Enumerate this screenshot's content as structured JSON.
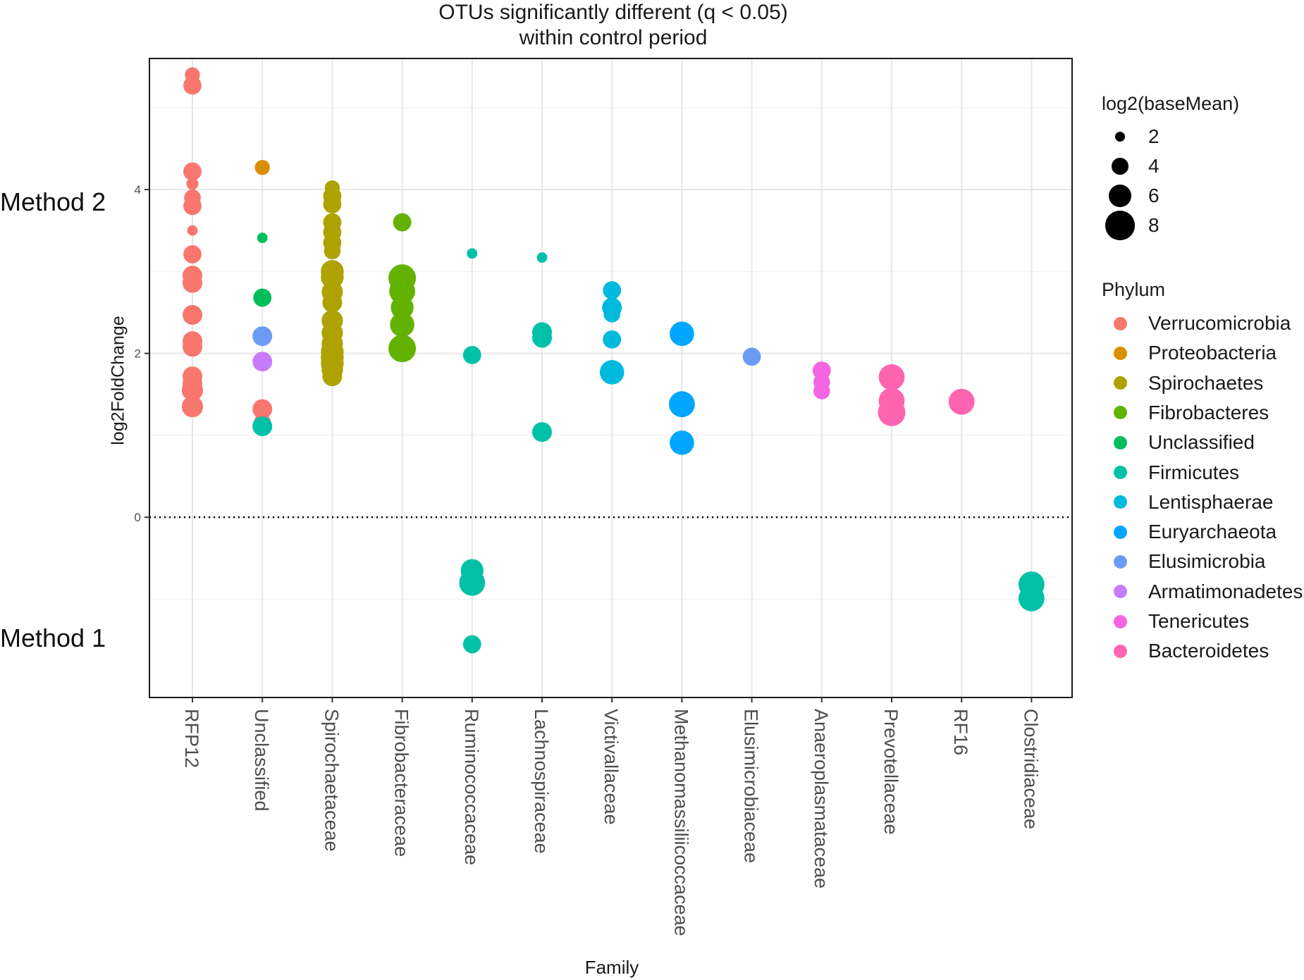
{
  "chart_data": {
    "type": "scatter",
    "title": "OTUs significantly different (q < 0.05)",
    "subtitle": "within control period",
    "xlabel": "Family",
    "ylabel": "log2FoldChange",
    "annotations": {
      "upper": "Method 2",
      "lower": "Method 1"
    },
    "ylim": [
      -2.2,
      5.6
    ],
    "yticks": [
      0,
      2,
      4
    ],
    "reference_line": {
      "y": 0,
      "style": "dotted"
    },
    "grid": true,
    "categories": [
      "RFP12",
      "Unclassified",
      "Spirochaetaceae",
      "Fibrobacteraceae",
      "Ruminococcaceae",
      "Lachnospiraceae",
      "Victivallaceae",
      "Methanomassiliicoccaceae",
      "Elusimicrobiaceae",
      "Anaeroplasmataceae",
      "Prevotellaceae",
      "RF16",
      "Clostridiaceae"
    ],
    "size_legend": {
      "title": "log2(baseMean)",
      "values": [
        2,
        4,
        6,
        8
      ]
    },
    "color_legend": {
      "title": "Phylum",
      "entries": [
        {
          "name": "Verrucomicrobia",
          "color": "#F8766D"
        },
        {
          "name": "Proteobacteria",
          "color": "#DB8E00"
        },
        {
          "name": "Spirochaetes",
          "color": "#AEA200"
        },
        {
          "name": "Fibrobacteres",
          "color": "#64B200"
        },
        {
          "name": "Unclassified",
          "color": "#00BD5C"
        },
        {
          "name": "Firmicutes",
          "color": "#00C1A7"
        },
        {
          "name": "Lentisphaerae",
          "color": "#00BADE"
        },
        {
          "name": "Euryarchaeota",
          "color": "#00A6FF"
        },
        {
          "name": "Elusimicrobia",
          "color": "#6B9CF5"
        },
        {
          "name": "Armatimonadetes",
          "color": "#C77CFF"
        },
        {
          "name": "Tenericutes",
          "color": "#F564E3"
        },
        {
          "name": "Bacteroidetes",
          "color": "#FF64B0"
        }
      ]
    },
    "points": [
      {
        "family": "RFP12",
        "phylum": "Verrucomicrobia",
        "y": 5.4,
        "size": 3.5
      },
      {
        "family": "RFP12",
        "phylum": "Verrucomicrobia",
        "y": 5.27,
        "size": 4.5
      },
      {
        "family": "RFP12",
        "phylum": "Verrucomicrobia",
        "y": 4.22,
        "size": 4.5
      },
      {
        "family": "RFP12",
        "phylum": "Verrucomicrobia",
        "y": 4.07,
        "size": 2.5
      },
      {
        "family": "RFP12",
        "phylum": "Verrucomicrobia",
        "y": 3.9,
        "size": 4
      },
      {
        "family": "RFP12",
        "phylum": "Verrucomicrobia",
        "y": 3.8,
        "size": 4.5
      },
      {
        "family": "RFP12",
        "phylum": "Verrucomicrobia",
        "y": 3.5,
        "size": 2
      },
      {
        "family": "RFP12",
        "phylum": "Verrucomicrobia",
        "y": 3.21,
        "size": 4.5
      },
      {
        "family": "RFP12",
        "phylum": "Verrucomicrobia",
        "y": 2.95,
        "size": 5
      },
      {
        "family": "RFP12",
        "phylum": "Verrucomicrobia",
        "y": 2.86,
        "size": 5
      },
      {
        "family": "RFP12",
        "phylum": "Verrucomicrobia",
        "y": 2.47,
        "size": 5
      },
      {
        "family": "RFP12",
        "phylum": "Verrucomicrobia",
        "y": 2.15,
        "size": 5
      },
      {
        "family": "RFP12",
        "phylum": "Verrucomicrobia",
        "y": 2.08,
        "size": 5
      },
      {
        "family": "RFP12",
        "phylum": "Verrucomicrobia",
        "y": 1.72,
        "size": 5
      },
      {
        "family": "RFP12",
        "phylum": "Verrucomicrobia",
        "y": 1.63,
        "size": 5
      },
      {
        "family": "RFP12",
        "phylum": "Verrucomicrobia",
        "y": 1.55,
        "size": 5.5
      },
      {
        "family": "RFP12",
        "phylum": "Verrucomicrobia",
        "y": 1.35,
        "size": 5.5
      },
      {
        "family": "Unclassified",
        "phylum": "Proteobacteria",
        "y": 4.27,
        "size": 3.5
      },
      {
        "family": "Unclassified",
        "phylum": "Unclassified",
        "y": 3.41,
        "size": 2
      },
      {
        "family": "Unclassified",
        "phylum": "Unclassified",
        "y": 2.68,
        "size": 4.5
      },
      {
        "family": "Unclassified",
        "phylum": "Elusimicrobia",
        "y": 2.21,
        "size": 5
      },
      {
        "family": "Unclassified",
        "phylum": "Armatimonadetes",
        "y": 1.9,
        "size": 5
      },
      {
        "family": "Unclassified",
        "phylum": "Verrucomicrobia",
        "y": 1.32,
        "size": 5
      },
      {
        "family": "Unclassified",
        "phylum": "Verrucomicrobia",
        "y": 1.16,
        "size": 4
      },
      {
        "family": "Unclassified",
        "phylum": "Firmicutes",
        "y": 1.11,
        "size": 5
      },
      {
        "family": "Spirochaetaceae",
        "phylum": "Spirochaetes",
        "y": 4.02,
        "size": 3.5
      },
      {
        "family": "Spirochaetaceae",
        "phylum": "Spirochaetes",
        "y": 3.92,
        "size": 4.5
      },
      {
        "family": "Spirochaetaceae",
        "phylum": "Spirochaetes",
        "y": 3.82,
        "size": 4.5
      },
      {
        "family": "Spirochaetaceae",
        "phylum": "Spirochaetes",
        "y": 3.6,
        "size": 4.5
      },
      {
        "family": "Spirochaetaceae",
        "phylum": "Spirochaetes",
        "y": 3.48,
        "size": 4.5
      },
      {
        "family": "Spirochaetaceae",
        "phylum": "Spirochaetes",
        "y": 3.35,
        "size": 4.5
      },
      {
        "family": "Spirochaetaceae",
        "phylum": "Spirochaetes",
        "y": 3.25,
        "size": 4
      },
      {
        "family": "Spirochaetaceae",
        "phylum": "Spirochaetes",
        "y": 3.0,
        "size": 6
      },
      {
        "family": "Spirochaetaceae",
        "phylum": "Spirochaetes",
        "y": 2.93,
        "size": 6
      },
      {
        "family": "Spirochaetaceae",
        "phylum": "Spirochaetes",
        "y": 2.75,
        "size": 5.5
      },
      {
        "family": "Spirochaetaceae",
        "phylum": "Spirochaetes",
        "y": 2.62,
        "size": 5
      },
      {
        "family": "Spirochaetaceae",
        "phylum": "Spirochaetes",
        "y": 2.4,
        "size": 5.5
      },
      {
        "family": "Spirochaetaceae",
        "phylum": "Spirochaetes",
        "y": 2.25,
        "size": 5.5
      },
      {
        "family": "Spirochaetaceae",
        "phylum": "Spirochaetes",
        "y": 2.12,
        "size": 5.5
      },
      {
        "family": "Spirochaetaceae",
        "phylum": "Spirochaetes",
        "y": 2.02,
        "size": 6
      },
      {
        "family": "Spirochaetaceae",
        "phylum": "Spirochaetes",
        "y": 1.95,
        "size": 6
      },
      {
        "family": "Spirochaetaceae",
        "phylum": "Spirochaetes",
        "y": 1.88,
        "size": 6
      },
      {
        "family": "Spirochaetaceae",
        "phylum": "Spirochaetes",
        "y": 1.8,
        "size": 5.5
      },
      {
        "family": "Spirochaetaceae",
        "phylum": "Spirochaetes",
        "y": 1.72,
        "size": 5
      },
      {
        "family": "Fibrobacteraceae",
        "phylum": "Fibrobacteres",
        "y": 3.6,
        "size": 4.5
      },
      {
        "family": "Fibrobacteraceae",
        "phylum": "Fibrobacteres",
        "y": 2.92,
        "size": 7.5
      },
      {
        "family": "Fibrobacteraceae",
        "phylum": "Fibrobacteres",
        "y": 2.76,
        "size": 7
      },
      {
        "family": "Fibrobacteraceae",
        "phylum": "Fibrobacteres",
        "y": 2.56,
        "size": 6
      },
      {
        "family": "Fibrobacteraceae",
        "phylum": "Fibrobacteres",
        "y": 2.35,
        "size": 6.5
      },
      {
        "family": "Fibrobacteraceae",
        "phylum": "Fibrobacteres",
        "y": 2.06,
        "size": 7.5
      },
      {
        "family": "Ruminococcaceae",
        "phylum": "Firmicutes",
        "y": 3.22,
        "size": 2
      },
      {
        "family": "Ruminococcaceae",
        "phylum": "Firmicutes",
        "y": 1.98,
        "size": 4.5
      },
      {
        "family": "Ruminococcaceae",
        "phylum": "Firmicutes",
        "y": -0.65,
        "size": 6
      },
      {
        "family": "Ruminococcaceae",
        "phylum": "Firmicutes",
        "y": -0.8,
        "size": 7
      },
      {
        "family": "Ruminococcaceae",
        "phylum": "Firmicutes",
        "y": -1.55,
        "size": 4.5
      },
      {
        "family": "Lachnospiraceae",
        "phylum": "Firmicutes",
        "y": 3.17,
        "size": 2
      },
      {
        "family": "Lachnospiraceae",
        "phylum": "Firmicutes",
        "y": 2.26,
        "size": 5
      },
      {
        "family": "Lachnospiraceae",
        "phylum": "Firmicutes",
        "y": 2.19,
        "size": 5
      },
      {
        "family": "Lachnospiraceae",
        "phylum": "Firmicutes",
        "y": 1.04,
        "size": 5
      },
      {
        "family": "Victivallaceae",
        "phylum": "Lentisphaerae",
        "y": 2.77,
        "size": 4.5
      },
      {
        "family": "Victivallaceae",
        "phylum": "Lentisphaerae",
        "y": 2.56,
        "size": 5
      },
      {
        "family": "Victivallaceae",
        "phylum": "Lentisphaerae",
        "y": 2.48,
        "size": 4
      },
      {
        "family": "Victivallaceae",
        "phylum": "Lentisphaerae",
        "y": 2.17,
        "size": 4.5
      },
      {
        "family": "Victivallaceae",
        "phylum": "Lentisphaerae",
        "y": 1.77,
        "size": 6.5
      },
      {
        "family": "Methanomassiliicoccaceae",
        "phylum": "Euryarchaeota",
        "y": 2.24,
        "size": 6.5
      },
      {
        "family": "Methanomassiliicoccaceae",
        "phylum": "Euryarchaeota",
        "y": 1.38,
        "size": 7
      },
      {
        "family": "Methanomassiliicoccaceae",
        "phylum": "Euryarchaeota",
        "y": 0.91,
        "size": 6.5
      },
      {
        "family": "Elusimicrobiaceae",
        "phylum": "Elusimicrobia",
        "y": 1.96,
        "size": 4.5
      },
      {
        "family": "Anaeroplasmataceae",
        "phylum": "Tenericutes",
        "y": 1.79,
        "size": 4.5
      },
      {
        "family": "Anaeroplasmataceae",
        "phylum": "Tenericutes",
        "y": 1.65,
        "size": 4
      },
      {
        "family": "Anaeroplasmataceae",
        "phylum": "Tenericutes",
        "y": 1.54,
        "size": 4
      },
      {
        "family": "Prevotellaceae",
        "phylum": "Bacteroidetes",
        "y": 1.71,
        "size": 7
      },
      {
        "family": "Prevotellaceae",
        "phylum": "Bacteroidetes",
        "y": 1.42,
        "size": 7
      },
      {
        "family": "Prevotellaceae",
        "phylum": "Bacteroidetes",
        "y": 1.28,
        "size": 7.5
      },
      {
        "family": "RF16",
        "phylum": "Bacteroidetes",
        "y": 1.41,
        "size": 7
      },
      {
        "family": "Clostridiaceae",
        "phylum": "Firmicutes",
        "y": -0.82,
        "size": 7
      },
      {
        "family": "Clostridiaceae",
        "phylum": "Firmicutes",
        "y": -0.99,
        "size": 7
      }
    ]
  }
}
